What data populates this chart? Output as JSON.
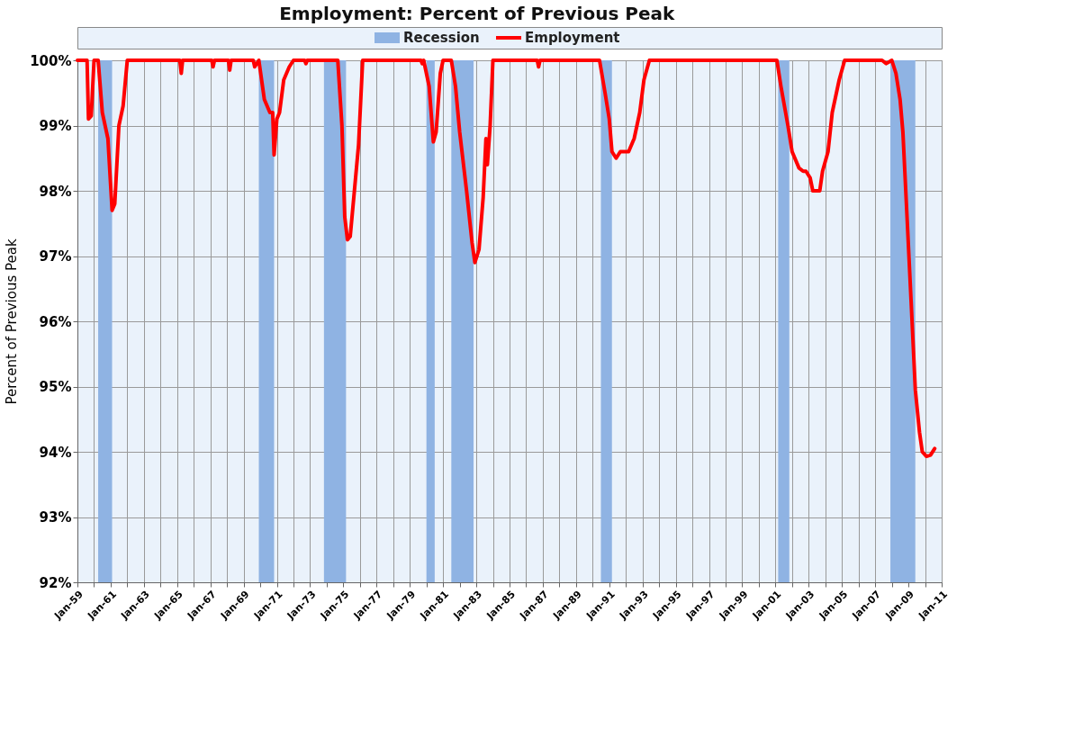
{
  "chart_data": {
    "type": "line",
    "title": "Employment: Percent of Previous Peak",
    "ylabel": "Percent of Previous Peak",
    "legend": "top",
    "grid": true,
    "line_style": "solid",
    "xlim": [
      "1959-01",
      "2011-01"
    ],
    "xticks": [
      {
        "value": "1959-01",
        "label": "Jan-59"
      },
      {
        "value": "1960-01",
        "label": null
      },
      {
        "value": "1961-01",
        "label": "Jan-61"
      },
      {
        "value": "1962-01",
        "label": null
      },
      {
        "value": "1963-01",
        "label": "Jan-63"
      },
      {
        "value": "1964-01",
        "label": null
      },
      {
        "value": "1965-01",
        "label": "Jan-65"
      },
      {
        "value": "1966-01",
        "label": null
      },
      {
        "value": "1967-01",
        "label": "Jan-67"
      },
      {
        "value": "1968-01",
        "label": null
      },
      {
        "value": "1969-01",
        "label": "Jan-69"
      },
      {
        "value": "1970-01",
        "label": null
      },
      {
        "value": "1971-01",
        "label": "Jan-71"
      },
      {
        "value": "1972-01",
        "label": null
      },
      {
        "value": "1973-01",
        "label": "Jan-73"
      },
      {
        "value": "1974-01",
        "label": null
      },
      {
        "value": "1975-01",
        "label": "Jan-75"
      },
      {
        "value": "1976-01",
        "label": null
      },
      {
        "value": "1977-01",
        "label": "Jan-77"
      },
      {
        "value": "1978-01",
        "label": null
      },
      {
        "value": "1979-01",
        "label": "Jan-79"
      },
      {
        "value": "1980-01",
        "label": null
      },
      {
        "value": "1981-01",
        "label": "Jan-81"
      },
      {
        "value": "1982-01",
        "label": null
      },
      {
        "value": "1983-01",
        "label": "Jan-83"
      },
      {
        "value": "1984-01",
        "label": null
      },
      {
        "value": "1985-01",
        "label": "Jan-85"
      },
      {
        "value": "1986-01",
        "label": null
      },
      {
        "value": "1987-01",
        "label": "Jan-87"
      },
      {
        "value": "1988-01",
        "label": null
      },
      {
        "value": "1989-01",
        "label": "Jan-89"
      },
      {
        "value": "1990-01",
        "label": null
      },
      {
        "value": "1991-01",
        "label": "Jan-91"
      },
      {
        "value": "1992-01",
        "label": null
      },
      {
        "value": "1993-01",
        "label": "Jan-93"
      },
      {
        "value": "1994-01",
        "label": null
      },
      {
        "value": "1995-01",
        "label": "Jan-95"
      },
      {
        "value": "1996-01",
        "label": null
      },
      {
        "value": "1997-01",
        "label": "Jan-97"
      },
      {
        "value": "1998-01",
        "label": null
      },
      {
        "value": "1999-01",
        "label": "Jan-99"
      },
      {
        "value": "2000-01",
        "label": null
      },
      {
        "value": "2001-01",
        "label": "Jan-01"
      },
      {
        "value": "2002-01",
        "label": null
      },
      {
        "value": "2003-01",
        "label": "Jan-03"
      },
      {
        "value": "2004-01",
        "label": null
      },
      {
        "value": "2005-01",
        "label": "Jan-05"
      },
      {
        "value": "2006-01",
        "label": null
      },
      {
        "value": "2007-01",
        "label": "Jan-07"
      },
      {
        "value": "2008-01",
        "label": null
      },
      {
        "value": "2009-01",
        "label": "Jan-09"
      },
      {
        "value": "2010-01",
        "label": null
      },
      {
        "value": "2011-01",
        "label": "Jan-11"
      }
    ],
    "ylim": [
      92,
      100
    ],
    "yticks": [
      {
        "value": 92,
        "label": "92%"
      },
      {
        "value": 93,
        "label": "93%"
      },
      {
        "value": 94,
        "label": "94%"
      },
      {
        "value": 95,
        "label": "95%"
      },
      {
        "value": 96,
        "label": "96%"
      },
      {
        "value": 97,
        "label": "97%"
      },
      {
        "value": 98,
        "label": "98%"
      },
      {
        "value": 99,
        "label": "99%"
      },
      {
        "value": 100,
        "label": "100%"
      }
    ],
    "bands": [
      {
        "axis": "x",
        "from": "1960-04",
        "to": "1961-02",
        "label": "Recession",
        "color": "#8fb3e3"
      },
      {
        "axis": "x",
        "from": "1969-12",
        "to": "1970-11",
        "color": "#8fb3e3"
      },
      {
        "axis": "x",
        "from": "1973-11",
        "to": "1975-03",
        "color": "#8fb3e3"
      },
      {
        "axis": "x",
        "from": "1980-01",
        "to": "1980-07",
        "color": "#8fb3e3"
      },
      {
        "axis": "x",
        "from": "1981-07",
        "to": "1982-11",
        "color": "#8fb3e3"
      },
      {
        "axis": "x",
        "from": "1990-07",
        "to": "1991-03",
        "color": "#8fb3e3"
      },
      {
        "axis": "x",
        "from": "2001-03",
        "to": "2001-11",
        "color": "#8fb3e3"
      },
      {
        "axis": "x",
        "from": "2007-12",
        "to": "2009-06",
        "color": "#8fb3e3"
      }
    ],
    "series": [
      {
        "name": "Employment",
        "color": "#ff0000",
        "x": [
          "1959-01",
          "1959-08",
          "1959-09",
          "1959-11",
          "1960-01",
          "1960-04",
          "1960-07",
          "1960-11",
          "1961-02",
          "1961-04",
          "1961-07",
          "1961-10",
          "1962-01",
          "1965-03",
          "1965-04",
          "1965-05",
          "1967-02",
          "1967-03",
          "1967-04",
          "1968-02",
          "1968-03",
          "1968-04",
          "1969-08",
          "1969-09",
          "1969-12",
          "1970-04",
          "1970-08",
          "1970-10",
          "1970-11",
          "1971-01",
          "1971-03",
          "1971-06",
          "1971-10",
          "1972-01",
          "1972-09",
          "1972-10",
          "1972-11",
          "1974-09",
          "1974-12",
          "1975-02",
          "1975-04",
          "1975-06",
          "1975-09",
          "1975-12",
          "1976-03",
          "1979-09",
          "1979-10",
          "1979-11",
          "1980-03",
          "1980-06",
          "1980-08",
          "1980-11",
          "1981-01",
          "1981-07",
          "1981-10",
          "1982-01",
          "1982-06",
          "1982-10",
          "1982-12",
          "1983-03",
          "1983-06",
          "1983-08",
          "1983-09",
          "1983-11",
          "1984-01",
          "1986-09",
          "1986-10",
          "1986-11",
          "1990-06",
          "1990-10",
          "1991-01",
          "1991-03",
          "1991-06",
          "1991-09",
          "1992-03",
          "1992-07",
          "1992-11",
          "1993-02",
          "1993-06",
          "2001-02",
          "2001-05",
          "2001-10",
          "2002-01",
          "2002-06",
          "2002-09",
          "2002-11",
          "2003-02",
          "2003-04",
          "2003-09",
          "2003-11",
          "2004-03",
          "2004-06",
          "2004-11",
          "2005-03",
          "2007-06",
          "2007-09",
          "2008-01",
          "2008-04",
          "2008-07",
          "2008-09",
          "2008-12",
          "2009-03",
          "2009-06",
          "2009-09",
          "2009-11",
          "2010-02",
          "2010-05",
          "2010-08"
        ],
        "values": [
          100,
          100,
          99.1,
          99.15,
          100,
          100,
          99.2,
          98.8,
          97.7,
          97.8,
          99.0,
          99.3,
          100,
          100,
          99.8,
          100,
          100,
          99.9,
          100,
          100,
          99.85,
          100,
          100,
          99.9,
          100,
          99.4,
          99.2,
          99.2,
          98.55,
          99.1,
          99.2,
          99.7,
          99.9,
          100,
          100,
          99.95,
          100,
          100,
          99.0,
          97.6,
          97.25,
          97.3,
          98.0,
          98.7,
          100,
          100,
          99.95,
          100,
          99.6,
          98.75,
          98.9,
          99.8,
          100,
          100,
          99.6,
          98.9,
          98.0,
          97.2,
          96.9,
          97.1,
          97.9,
          98.8,
          98.4,
          99.0,
          100,
          100,
          99.9,
          100,
          100,
          99.5,
          99.1,
          98.6,
          98.5,
          98.6,
          98.6,
          98.8,
          99.2,
          99.7,
          100,
          100,
          99.6,
          99.0,
          98.6,
          98.35,
          98.3,
          98.3,
          98.2,
          98.0,
          98.0,
          98.3,
          98.6,
          99.2,
          99.7,
          100,
          100,
          99.95,
          100,
          99.8,
          99.4,
          98.9,
          97.6,
          96.3,
          94.95,
          94.3,
          94.0,
          93.93,
          93.95,
          94.05
        ]
      }
    ]
  }
}
